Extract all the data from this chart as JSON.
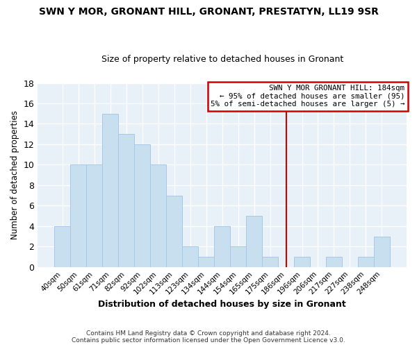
{
  "title": "SWN Y MOR, GRONANT HILL, GRONANT, PRESTATYN, LL19 9SR",
  "subtitle": "Size of property relative to detached houses in Gronant",
  "xlabel": "Distribution of detached houses by size in Gronant",
  "ylabel": "Number of detached properties",
  "bar_color": "#c8dff0",
  "bar_edge_color": "#a8c8e8",
  "bar_heights": [
    4,
    10,
    10,
    15,
    13,
    12,
    10,
    7,
    2,
    1,
    4,
    2,
    5,
    1,
    0,
    1,
    0,
    1,
    0,
    1,
    3
  ],
  "bin_labels": [
    "40sqm",
    "50sqm",
    "61sqm",
    "71sqm",
    "82sqm",
    "92sqm",
    "102sqm",
    "113sqm",
    "123sqm",
    "134sqm",
    "144sqm",
    "154sqm",
    "165sqm",
    "175sqm",
    "186sqm",
    "196sqm",
    "206sqm",
    "217sqm",
    "227sqm",
    "238sqm",
    "248sqm"
  ],
  "ylim": [
    0,
    18
  ],
  "yticks": [
    0,
    2,
    4,
    6,
    8,
    10,
    12,
    14,
    16,
    18
  ],
  "vline_x": 14,
  "vline_color": "#cc0000",
  "legend_title": "SWN Y MOR GRONANT HILL: 184sqm",
  "legend_line1": "← 95% of detached houses are smaller (95)",
  "legend_line2": "5% of semi-detached houses are larger (5) →",
  "legend_box_color": "#ffffff",
  "legend_box_edge_color": "#cc0000",
  "footer_line1": "Contains HM Land Registry data © Crown copyright and database right 2024.",
  "footer_line2": "Contains public sector information licensed under the Open Government Licence v3.0.",
  "background_color": "#ffffff",
  "plot_bg_color": "#e8f0f8",
  "grid_color": "#ffffff"
}
